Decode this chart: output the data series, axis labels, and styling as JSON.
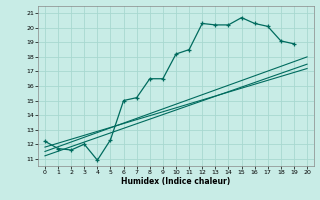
{
  "title": "",
  "xlabel": "Humidex (Indice chaleur)",
  "xlim": [
    -0.5,
    20.5
  ],
  "ylim": [
    10.5,
    21.5
  ],
  "xticks": [
    0,
    1,
    2,
    3,
    4,
    5,
    6,
    7,
    8,
    9,
    10,
    11,
    12,
    13,
    14,
    15,
    16,
    17,
    18,
    19,
    20
  ],
  "yticks": [
    11,
    12,
    13,
    14,
    15,
    16,
    17,
    18,
    19,
    20,
    21
  ],
  "bg_color": "#c8ece6",
  "grid_color": "#a8d8d0",
  "line_color": "#006b5e",
  "series1_x": [
    0,
    1,
    2,
    3,
    4,
    5,
    6,
    7,
    8,
    9,
    10,
    11,
    12,
    13,
    14,
    15,
    16,
    17,
    18,
    19
  ],
  "series1_y": [
    12.2,
    11.7,
    11.6,
    12.0,
    10.9,
    12.3,
    15.0,
    15.2,
    16.5,
    16.5,
    18.2,
    18.5,
    20.3,
    20.2,
    20.2,
    20.7,
    20.3,
    20.1,
    19.1,
    18.9
  ],
  "series2_x": [
    0,
    20
  ],
  "series2_y": [
    11.5,
    18.0
  ],
  "series3_x": [
    0,
    20
  ],
  "series3_y": [
    11.2,
    17.5
  ],
  "series4_x": [
    0,
    20
  ],
  "series4_y": [
    11.8,
    17.2
  ]
}
